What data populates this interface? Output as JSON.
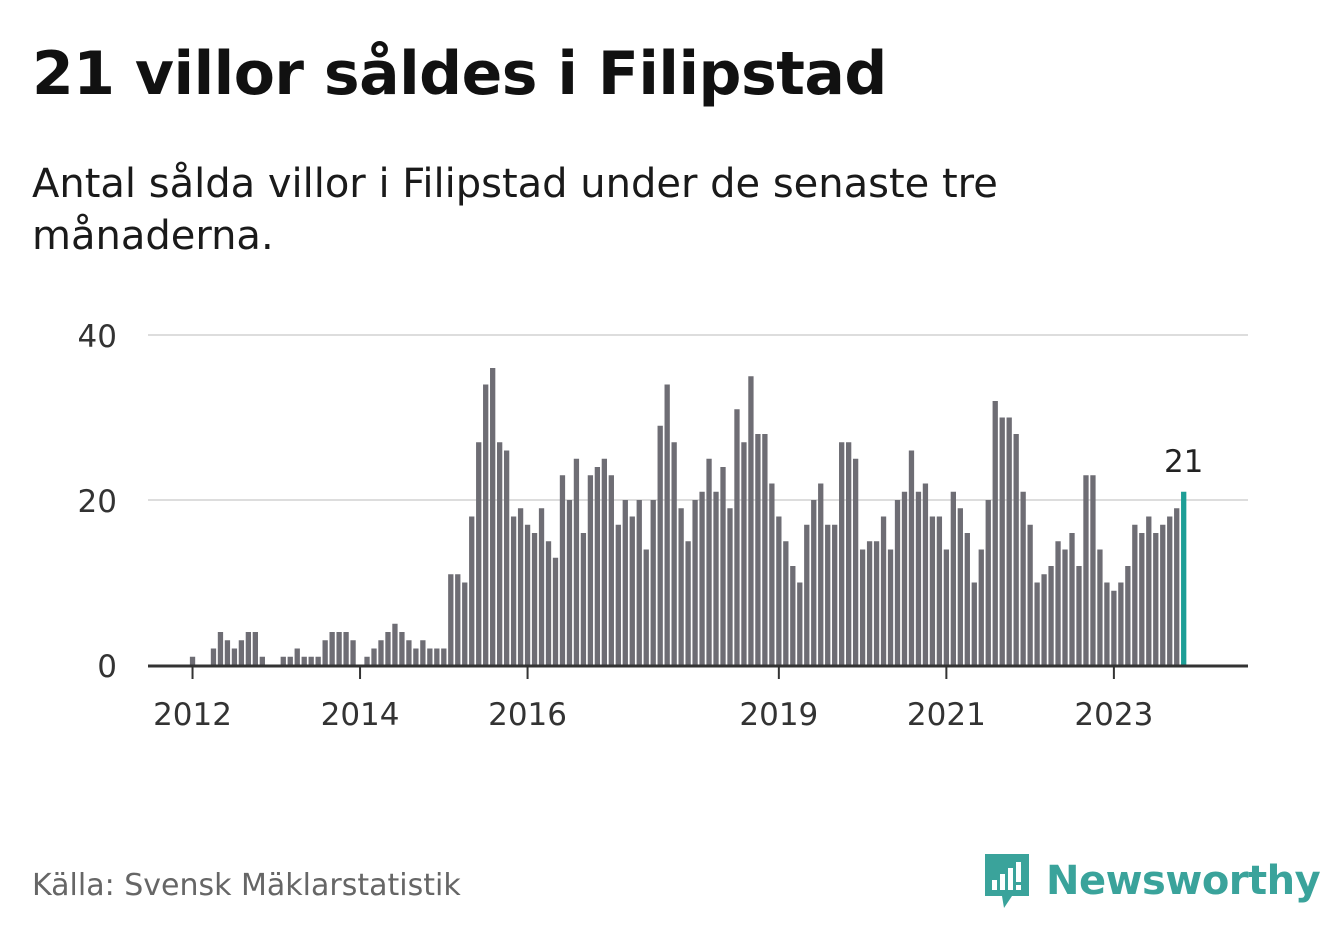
{
  "title": "21 villor såldes i Filipstad",
  "subtitle": "Antal sålda villor i Filipstad under de senaste tre månaderna.",
  "source": "Källa: Svensk Mäklarstatistik",
  "brand": {
    "name": "Newsworthy",
    "color": "#3aa39b"
  },
  "colors": {
    "bar": "#6e6d74",
    "highlight": "#1d9e96",
    "grid": "#dddddd",
    "axis": "#333333"
  },
  "chart_data": {
    "type": "bar",
    "x_start": "2011-07",
    "x_step": "1 month",
    "ylim": [
      0,
      40
    ],
    "yticks": [
      0,
      20,
      40
    ],
    "xticks": [
      {
        "label": "2012",
        "index": 6
      },
      {
        "label": "2014",
        "index": 30
      },
      {
        "label": "2016",
        "index": 54
      },
      {
        "label": "2019",
        "index": 90
      },
      {
        "label": "2021",
        "index": 114
      },
      {
        "label": "2023",
        "index": 138
      }
    ],
    "values": [
      0,
      0,
      0,
      0,
      0,
      0,
      1,
      0,
      0,
      2,
      4,
      3,
      2,
      3,
      4,
      4,
      1,
      0,
      0,
      1,
      1,
      2,
      1,
      1,
      1,
      3,
      4,
      4,
      4,
      3,
      0,
      1,
      2,
      3,
      4,
      5,
      4,
      3,
      2,
      3,
      2,
      2,
      2,
      11,
      11,
      10,
      18,
      27,
      34,
      36,
      27,
      26,
      18,
      19,
      17,
      16,
      19,
      15,
      13,
      23,
      20,
      25,
      16,
      23,
      24,
      25,
      23,
      17,
      20,
      18,
      20,
      14,
      20,
      29,
      34,
      27,
      19,
      15,
      20,
      21,
      25,
      21,
      24,
      19,
      31,
      27,
      35,
      28,
      28,
      22,
      18,
      15,
      12,
      10,
      17,
      20,
      22,
      17,
      17,
      27,
      27,
      25,
      14,
      15,
      15,
      18,
      14,
      20,
      21,
      26,
      21,
      22,
      18,
      18,
      14,
      21,
      19,
      16,
      10,
      14,
      20,
      32,
      30,
      30,
      28,
      21,
      17,
      10,
      11,
      12,
      15,
      14,
      16,
      12,
      23,
      23,
      14,
      10,
      9,
      10,
      12,
      17,
      16,
      18,
      16,
      17,
      18,
      19,
      21
    ],
    "highlight_last": true,
    "last_label": "21"
  }
}
